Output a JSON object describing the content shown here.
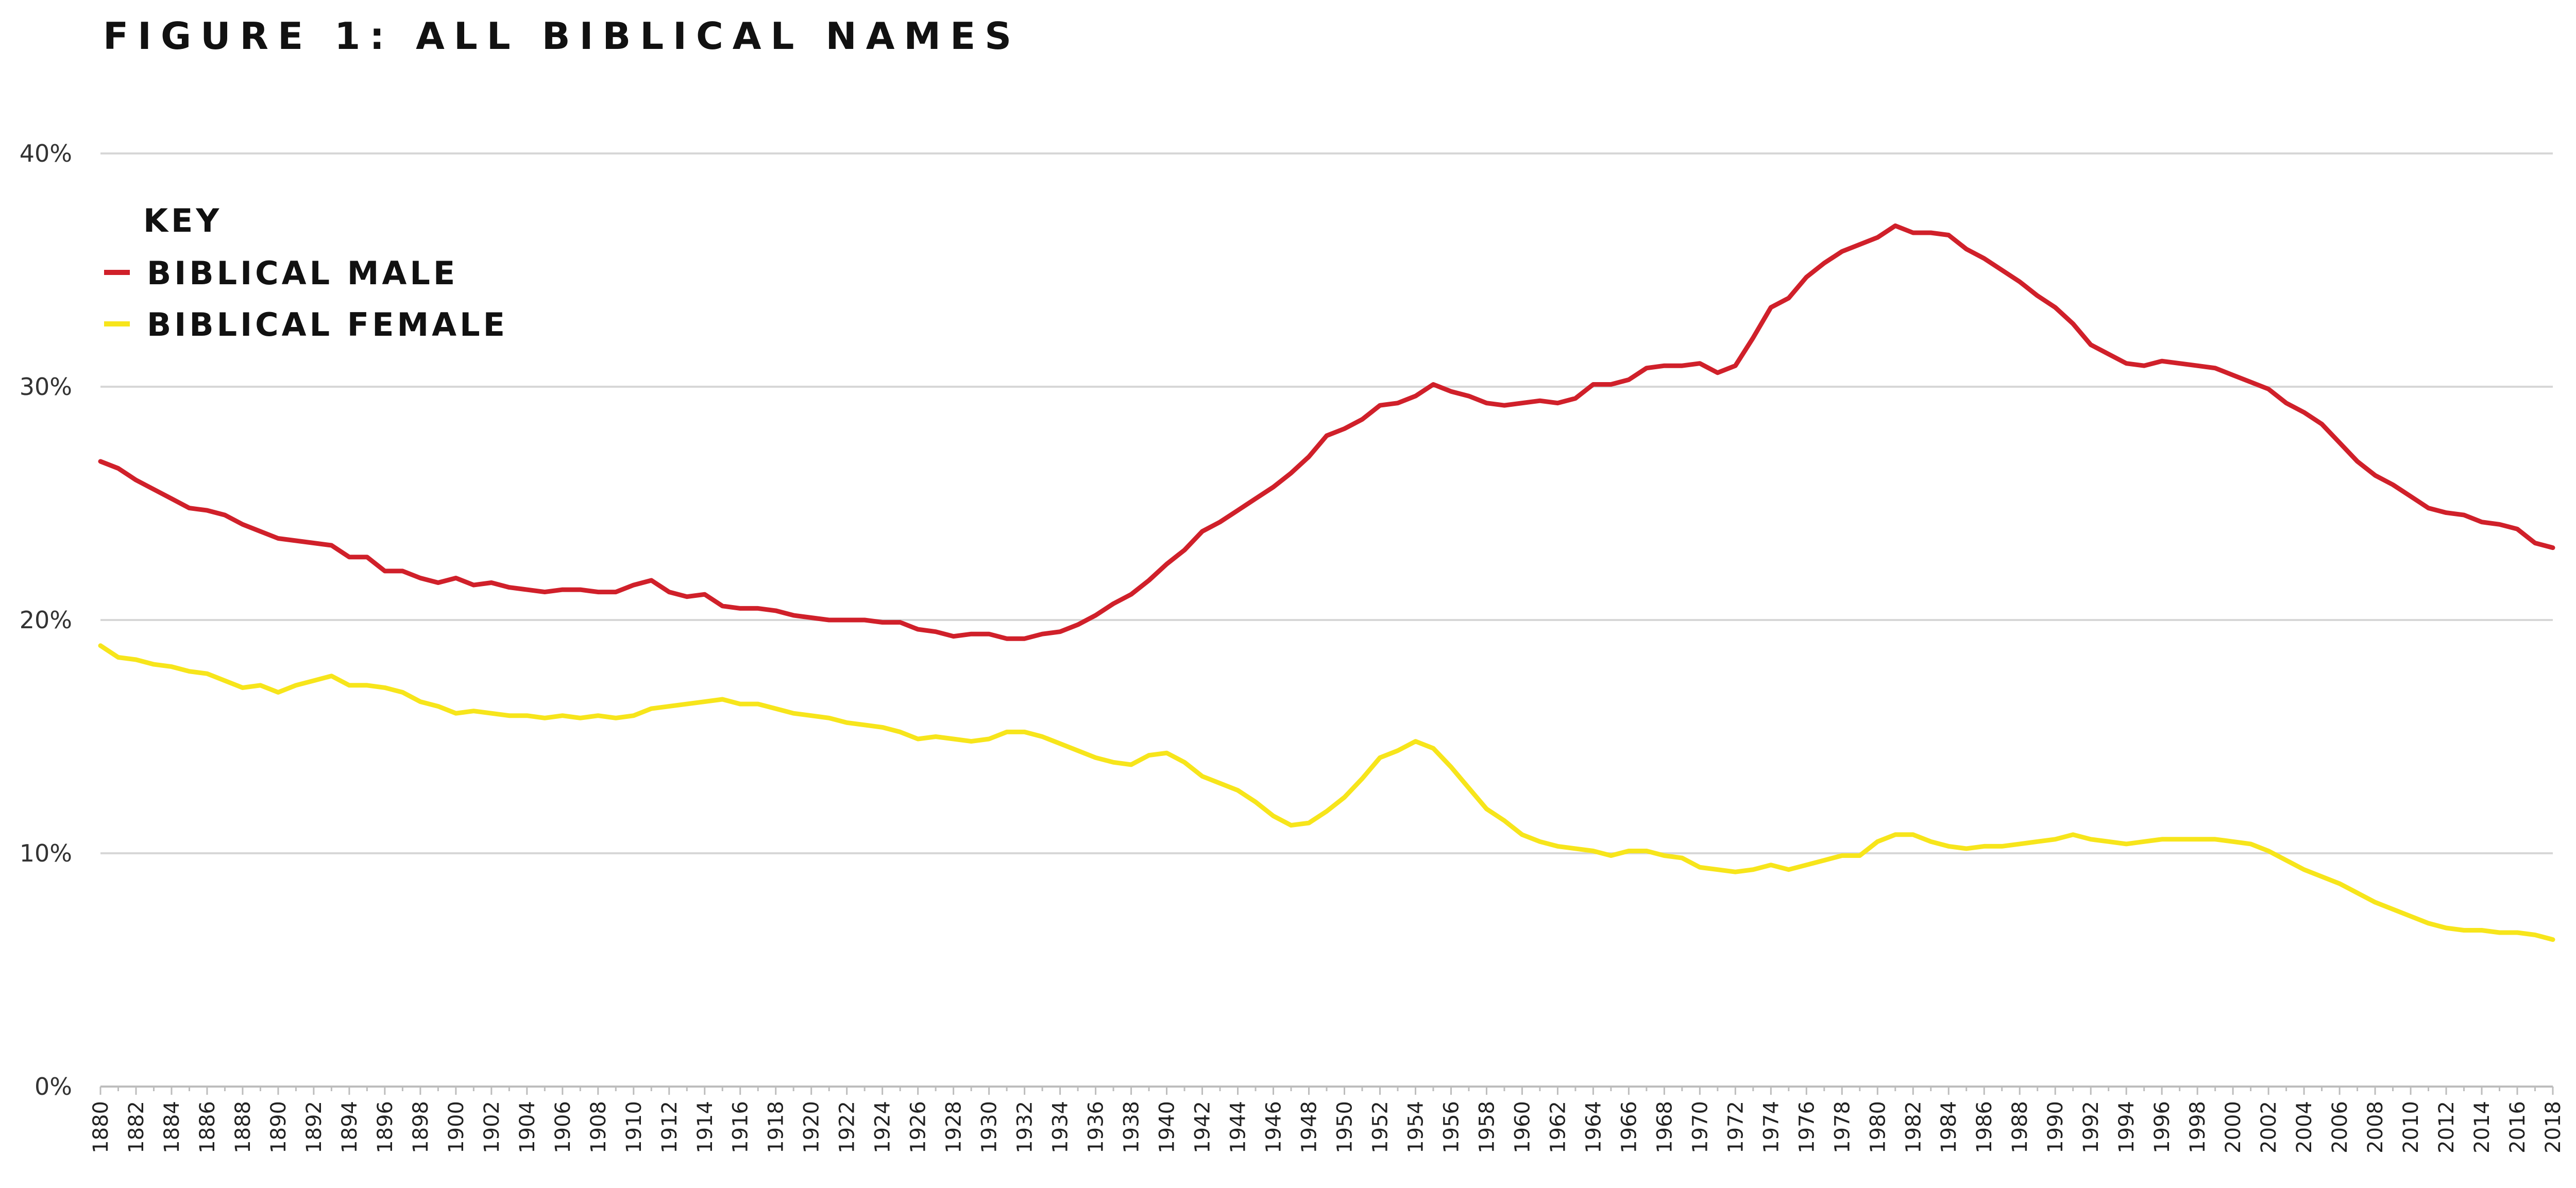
{
  "title": "FIGURE 1: ALL BIBLICAL NAMES",
  "legend": {
    "title": "KEY",
    "entries": [
      "BIBLICAL MALE",
      "BIBLICAL FEMALE"
    ]
  },
  "colors": {
    "male": "#d0202a",
    "female": "#f7e51b"
  },
  "chart_data": {
    "type": "line",
    "title": "FIGURE 1: ALL BIBLICAL NAMES",
    "xlabel": "",
    "ylabel": "",
    "ylim": [
      0,
      40
    ],
    "yticks": [
      0,
      10,
      20,
      30,
      40
    ],
    "ytick_labels": [
      "0%",
      "10%",
      "20%",
      "30%",
      "40%"
    ],
    "x_start": 1880,
    "x_end": 2018,
    "x_tick_step": 2,
    "grid": true,
    "legend_position": "top-left",
    "x": [
      1880,
      1881,
      1882,
      1883,
      1884,
      1885,
      1886,
      1887,
      1888,
      1889,
      1890,
      1891,
      1892,
      1893,
      1894,
      1895,
      1896,
      1897,
      1898,
      1899,
      1900,
      1901,
      1902,
      1903,
      1904,
      1905,
      1906,
      1907,
      1908,
      1909,
      1910,
      1911,
      1912,
      1913,
      1914,
      1915,
      1916,
      1917,
      1918,
      1919,
      1920,
      1921,
      1922,
      1923,
      1924,
      1925,
      1926,
      1927,
      1928,
      1929,
      1930,
      1931,
      1932,
      1933,
      1934,
      1935,
      1936,
      1937,
      1938,
      1939,
      1940,
      1941,
      1942,
      1943,
      1944,
      1945,
      1946,
      1947,
      1948,
      1949,
      1950,
      1951,
      1952,
      1953,
      1954,
      1955,
      1956,
      1957,
      1958,
      1959,
      1960,
      1961,
      1962,
      1963,
      1964,
      1965,
      1966,
      1967,
      1968,
      1969,
      1970,
      1971,
      1972,
      1973,
      1974,
      1975,
      1976,
      1977,
      1978,
      1979,
      1980,
      1981,
      1982,
      1983,
      1984,
      1985,
      1986,
      1987,
      1988,
      1989,
      1990,
      1991,
      1992,
      1993,
      1994,
      1995,
      1996,
      1997,
      1998,
      1999,
      2000,
      2001,
      2002,
      2003,
      2004,
      2005,
      2006,
      2007,
      2008,
      2009,
      2010,
      2011,
      2012,
      2013,
      2014,
      2015,
      2016,
      2017,
      2018
    ],
    "series": [
      {
        "name": "BIBLICAL MALE",
        "values": [
          26.8,
          26.5,
          26.0,
          25.6,
          25.2,
          24.8,
          24.7,
          24.5,
          24.1,
          23.8,
          23.5,
          23.4,
          23.3,
          23.2,
          22.7,
          22.7,
          22.1,
          22.1,
          21.8,
          21.6,
          21.8,
          21.5,
          21.6,
          21.4,
          21.3,
          21.2,
          21.3,
          21.3,
          21.2,
          21.2,
          21.5,
          21.7,
          21.2,
          21.0,
          21.1,
          20.6,
          20.5,
          20.5,
          20.4,
          20.2,
          20.1,
          20.0,
          20.0,
          20.0,
          19.9,
          19.9,
          19.6,
          19.5,
          19.3,
          19.4,
          19.4,
          19.2,
          19.2,
          19.4,
          19.5,
          19.8,
          20.2,
          20.7,
          21.1,
          21.7,
          22.4,
          23.0,
          23.8,
          24.2,
          24.7,
          25.2,
          25.7,
          26.3,
          27.0,
          27.9,
          28.2,
          28.6,
          29.2,
          29.3,
          29.6,
          30.1,
          29.8,
          29.6,
          29.3,
          29.2,
          29.3,
          29.4,
          29.3,
          29.5,
          30.1,
          30.1,
          30.3,
          30.8,
          30.9,
          30.9,
          31.0,
          30.6,
          30.9,
          32.1,
          33.4,
          33.8,
          34.7,
          35.3,
          35.8,
          36.1,
          36.4,
          36.9,
          36.6,
          36.6,
          36.5,
          35.9,
          35.5,
          35.0,
          34.5,
          33.9,
          33.4,
          32.7,
          31.8,
          31.4,
          31.0,
          30.9,
          31.1,
          31.0,
          30.9,
          30.8,
          30.5,
          30.2,
          29.9,
          29.3,
          28.9,
          28.4,
          27.6,
          26.8,
          26.2,
          25.8,
          25.3,
          24.8,
          24.6,
          24.5,
          24.2,
          24.1,
          23.9,
          23.3,
          23.1
        ]
      },
      {
        "name": "BIBLICAL FEMALE",
        "values": [
          18.9,
          18.4,
          18.3,
          18.1,
          18.0,
          17.8,
          17.7,
          17.4,
          17.1,
          17.2,
          16.9,
          17.2,
          17.4,
          17.6,
          17.2,
          17.2,
          17.1,
          16.9,
          16.5,
          16.3,
          16.0,
          16.1,
          16.0,
          15.9,
          15.9,
          15.8,
          15.9,
          15.8,
          15.9,
          15.8,
          15.9,
          16.2,
          16.3,
          16.4,
          16.5,
          16.6,
          16.4,
          16.4,
          16.2,
          16.0,
          15.9,
          15.8,
          15.6,
          15.5,
          15.4,
          15.2,
          14.9,
          15.0,
          14.9,
          14.8,
          14.9,
          15.2,
          15.2,
          15.0,
          14.7,
          14.4,
          14.1,
          13.9,
          13.8,
          14.2,
          14.3,
          13.9,
          13.3,
          13.0,
          12.7,
          12.2,
          11.6,
          11.2,
          11.3,
          11.8,
          12.4,
          13.2,
          14.1,
          14.4,
          14.8,
          14.5,
          13.7,
          12.8,
          11.9,
          11.4,
          10.8,
          10.5,
          10.3,
          10.2,
          10.1,
          9.9,
          10.1,
          10.1,
          9.9,
          9.8,
          9.4,
          9.3,
          9.2,
          9.3,
          9.5,
          9.3,
          9.5,
          9.7,
          9.9,
          9.9,
          10.5,
          10.8,
          10.8,
          10.5,
          10.3,
          10.2,
          10.3,
          10.3,
          10.4,
          10.5,
          10.6,
          10.8,
          10.6,
          10.5,
          10.4,
          10.5,
          10.6,
          10.6,
          10.6,
          10.6,
          10.5,
          10.4,
          10.1,
          9.7,
          9.3,
          9.0,
          8.7,
          8.3,
          7.9,
          7.6,
          7.3,
          7.0,
          6.8,
          6.7,
          6.7,
          6.6,
          6.6,
          6.5,
          6.3
        ]
      }
    ]
  }
}
